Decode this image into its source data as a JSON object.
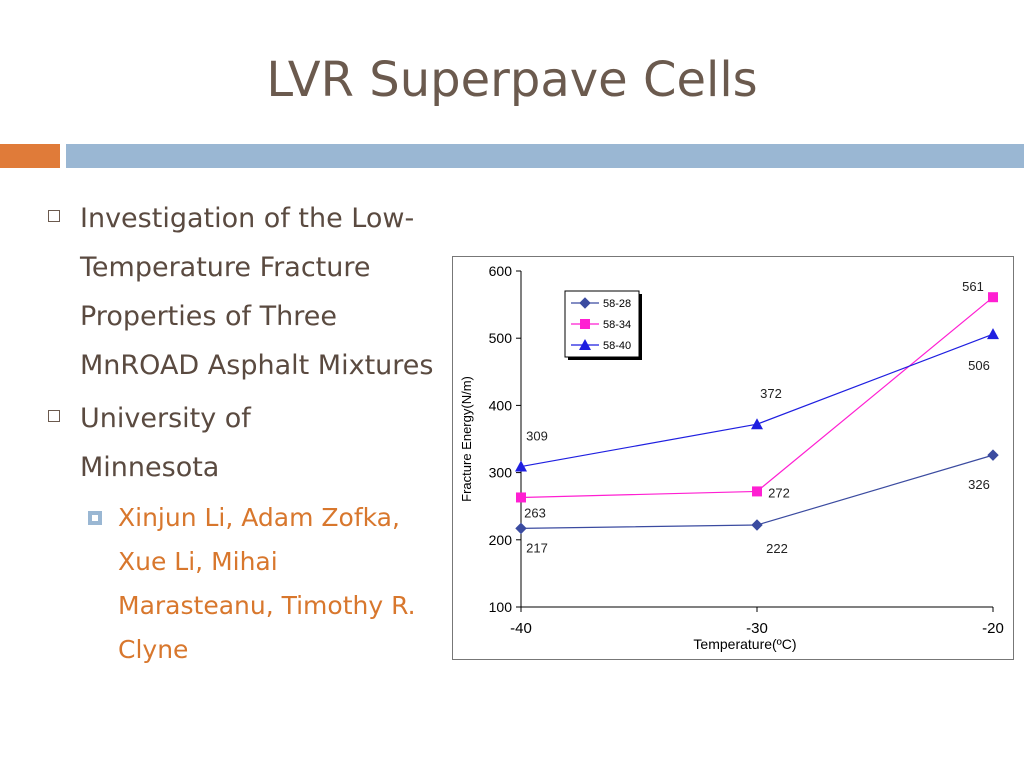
{
  "slide": {
    "title": "LVR Superpave Cells",
    "bullets": [
      {
        "text": "Investigation of the Low-Temperature Fracture Properties of Three MnROAD Asphalt Mixtures"
      },
      {
        "text": "University of Minnesota"
      }
    ],
    "sub_bullet": "Xinjun Li, Adam Zofka, Xue Li, Mihai Marasteanu, Timothy R. Clyne",
    "colors": {
      "title": "#6b5a4e",
      "accent_orange": "#e07b39",
      "accent_blue": "#9ab7d3",
      "sub_bullet": "#d8772d"
    }
  },
  "chart_data": {
    "type": "line",
    "title": "",
    "xlabel": "Temperature(ºC)",
    "ylabel": "Fracture Energy(N/m)",
    "x": [
      -40,
      -30,
      -20
    ],
    "x_ticks": [
      "-40",
      "-30",
      "-20"
    ],
    "y_ticks": [
      "100",
      "200",
      "300",
      "400",
      "500",
      "600"
    ],
    "ylim": [
      100,
      600
    ],
    "legend_position": "top-left",
    "grid": false,
    "series": [
      {
        "name": "58-28",
        "values": [
          217,
          222,
          326
        ],
        "labels": [
          "217",
          "222",
          "326"
        ],
        "color": "#3b4ba0",
        "marker": "diamond"
      },
      {
        "name": "58-34",
        "values": [
          263,
          272,
          561
        ],
        "labels": [
          "263",
          "272",
          "561"
        ],
        "color": "#ff1fd2",
        "marker": "square"
      },
      {
        "name": "58-40",
        "values": [
          309,
          372,
          506
        ],
        "labels": [
          "309",
          "372",
          "506"
        ],
        "color": "#1f1fe0",
        "marker": "triangle"
      }
    ]
  }
}
